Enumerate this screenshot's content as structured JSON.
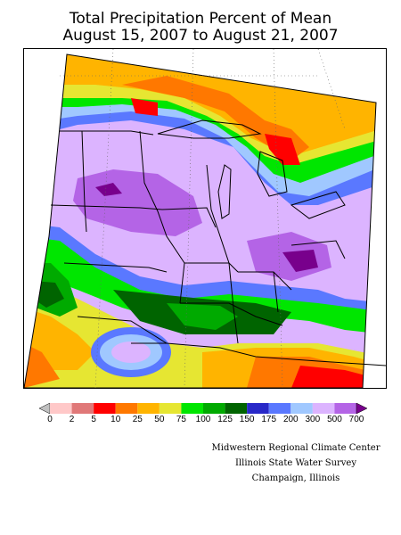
{
  "title": {
    "line1": "Total Precipitation Percent of Mean",
    "line2": "August 15, 2007 to August 21, 2007"
  },
  "legend": {
    "ticks": [
      "0",
      "2",
      "5",
      "10",
      "25",
      "50",
      "75",
      "100",
      "125",
      "150",
      "175",
      "200",
      "300",
      "500",
      "700"
    ],
    "colors": [
      "#c0c0c0",
      "#ffc8c8",
      "#e07878",
      "#ff0000",
      "#ff7800",
      "#ffb400",
      "#e6e632",
      "#00e600",
      "#00aa00",
      "#006400",
      "#2828c8",
      "#5a78ff",
      "#a0c8ff",
      "#dcb4ff",
      "#b464e6",
      "#78008c"
    ]
  },
  "credits": {
    "line1": "Midwestern Regional Climate Center",
    "line2": "Illinois State Water Survey",
    "line3": "Champaign, Illinois"
  }
}
